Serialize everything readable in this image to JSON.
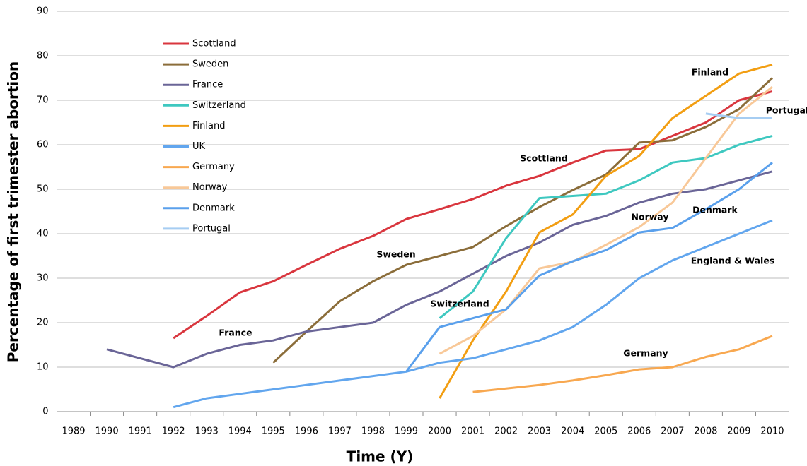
{
  "chart_data": {
    "type": "line",
    "y_label": "Percentage of first trimester abortion",
    "x_label": "Time (Y)",
    "categories": [
      "1989",
      "1990",
      "1991",
      "1992",
      "1993",
      "1994",
      "1995",
      "1996",
      "1997",
      "1998",
      "1999",
      "2000",
      "2001",
      "2002",
      "2003",
      "2004",
      "2005",
      "2006",
      "2007",
      "2008",
      "2009",
      "2010"
    ],
    "ylim": [
      0,
      90
    ],
    "yticks": [
      0,
      10,
      20,
      30,
      40,
      50,
      60,
      70,
      80,
      90
    ],
    "grid": true,
    "legend": "upper left",
    "series": [
      {
        "name": "Scottland",
        "color": "#d9363e",
        "values": [
          null,
          null,
          null,
          16.5,
          21.5,
          26.8,
          29.3,
          33,
          36.6,
          39.5,
          43.3,
          45.5,
          47.8,
          50.8,
          53,
          56,
          58.7,
          59,
          62,
          65,
          70,
          72
        ]
      },
      {
        "name": "Sweden",
        "color": "#8b6d3a",
        "values": [
          null,
          null,
          null,
          null,
          null,
          null,
          11,
          18,
          24.8,
          29.3,
          33,
          35,
          37,
          41.7,
          46,
          49.8,
          53.3,
          60.5,
          61,
          64,
          68,
          75
        ]
      },
      {
        "name": "France",
        "color": "#6a6597",
        "values": [
          null,
          14,
          12,
          10,
          13,
          15,
          16,
          18,
          19,
          20,
          24,
          27,
          31,
          35,
          38,
          42,
          44,
          47,
          49,
          50,
          52,
          54
        ]
      },
      {
        "name": "Switzerland",
        "color": "#3ec8c0",
        "values": [
          null,
          null,
          null,
          null,
          null,
          null,
          null,
          null,
          null,
          null,
          null,
          21,
          27,
          39,
          48,
          48.5,
          49,
          52,
          56,
          57,
          60,
          62
        ]
      },
      {
        "name": "Finland",
        "color": "#f29e12",
        "values": [
          null,
          null,
          null,
          null,
          null,
          null,
          null,
          null,
          null,
          null,
          null,
          3,
          16,
          27,
          40.3,
          44.3,
          53,
          57.5,
          66,
          71,
          76,
          78
        ]
      },
      {
        "name": "UK",
        "color": "#62a6ee",
        "values": [
          null,
          null,
          null,
          1,
          3,
          4,
          5,
          6,
          7,
          8,
          9,
          11,
          12,
          14,
          16,
          19,
          24,
          30,
          34,
          37,
          40,
          43
        ]
      },
      {
        "name": "Germany",
        "color": "#f8a850",
        "values": [
          null,
          null,
          null,
          null,
          null,
          null,
          null,
          null,
          null,
          null,
          null,
          null,
          4.4,
          5.2,
          6,
          7,
          8.2,
          9.5,
          10,
          12.3,
          14,
          17
        ]
      },
      {
        "name": "Norway",
        "color": "#f8c898",
        "values": [
          null,
          null,
          null,
          null,
          null,
          null,
          null,
          null,
          null,
          null,
          null,
          13,
          17,
          23,
          32.2,
          33.7,
          37.5,
          41.5,
          47,
          57,
          67,
          73
        ]
      },
      {
        "name": "Denmark",
        "color": "#5aa0ec",
        "values": [
          null,
          null,
          null,
          null,
          null,
          null,
          null,
          null,
          null,
          null,
          9,
          19,
          21,
          23,
          30.6,
          33.8,
          36.3,
          40.3,
          41.3,
          45.5,
          50,
          56
        ]
      },
      {
        "name": "Portugal",
        "color": "#a6cdf2",
        "values": [
          null,
          null,
          null,
          null,
          null,
          null,
          null,
          null,
          null,
          null,
          null,
          null,
          null,
          null,
          null,
          null,
          null,
          null,
          null,
          67,
          66,
          66
        ]
      }
    ],
    "annotations": [
      "Finland",
      "Portugal",
      "Scottland",
      "Norway",
      "Denmark",
      "England & Wales",
      "Sweden",
      "Switzerland",
      "France",
      "Germany"
    ]
  }
}
